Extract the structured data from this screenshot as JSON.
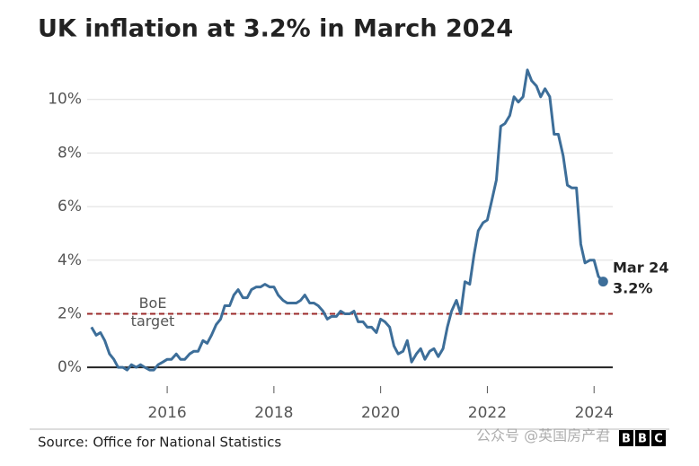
{
  "chart_data": {
    "type": "line",
    "title": "UK inflation at 3.2% in March 2024",
    "source": "Source: Office for National Statistics",
    "watermark": "公众号 @英国房产君",
    "logo": [
      "B",
      "B",
      "C"
    ],
    "color": "#3d6e99",
    "x": [
      2014.58,
      2014.67,
      2014.75,
      2014.83,
      2014.92,
      2015,
      2015.08,
      2015.17,
      2015.25,
      2015.33,
      2015.42,
      2015.5,
      2015.58,
      2015.67,
      2015.75,
      2015.83,
      2015.92,
      2016,
      2016.08,
      2016.17,
      2016.25,
      2016.33,
      2016.42,
      2016.5,
      2016.58,
      2016.67,
      2016.75,
      2016.83,
      2016.92,
      2017,
      2017.08,
      2017.17,
      2017.25,
      2017.33,
      2017.42,
      2017.5,
      2017.58,
      2017.67,
      2017.75,
      2017.83,
      2017.92,
      2018,
      2018.08,
      2018.17,
      2018.25,
      2018.33,
      2018.42,
      2018.5,
      2018.58,
      2018.67,
      2018.75,
      2018.83,
      2018.92,
      2019,
      2019.08,
      2019.17,
      2019.25,
      2019.33,
      2019.42,
      2019.5,
      2019.58,
      2019.67,
      2019.75,
      2019.83,
      2019.92,
      2020,
      2020.08,
      2020.17,
      2020.25,
      2020.33,
      2020.42,
      2020.5,
      2020.58,
      2020.67,
      2020.75,
      2020.83,
      2020.92,
      2021,
      2021.08,
      2021.17,
      2021.25,
      2021.33,
      2021.42,
      2021.5,
      2021.58,
      2021.67,
      2021.75,
      2021.83,
      2021.92,
      2022,
      2022.08,
      2022.17,
      2022.25,
      2022.33,
      2022.42,
      2022.5,
      2022.58,
      2022.67,
      2022.75,
      2022.83,
      2022.92,
      2023,
      2023.08,
      2023.17,
      2023.25,
      2023.33,
      2023.42,
      2023.5,
      2023.58,
      2023.67,
      2023.75,
      2023.83,
      2023.92,
      2024,
      2024.08,
      2024.17
    ],
    "values": [
      1.5,
      1.2,
      1.3,
      1.0,
      0.5,
      0.3,
      0.0,
      0.0,
      -0.1,
      0.1,
      0.0,
      0.1,
      0.0,
      -0.1,
      -0.1,
      0.1,
      0.2,
      0.3,
      0.3,
      0.5,
      0.3,
      0.3,
      0.5,
      0.6,
      0.6,
      1.0,
      0.9,
      1.2,
      1.6,
      1.8,
      2.3,
      2.3,
      2.7,
      2.9,
      2.6,
      2.6,
      2.9,
      3.0,
      3.0,
      3.1,
      3.0,
      3.0,
      2.7,
      2.5,
      2.4,
      2.4,
      2.4,
      2.5,
      2.7,
      2.4,
      2.4,
      2.3,
      2.1,
      1.8,
      1.9,
      1.9,
      2.1,
      2.0,
      2.0,
      2.1,
      1.7,
      1.7,
      1.5,
      1.5,
      1.3,
      1.8,
      1.7,
      1.5,
      0.8,
      0.5,
      0.6,
      1.0,
      0.2,
      0.5,
      0.7,
      0.3,
      0.6,
      0.7,
      0.4,
      0.7,
      1.5,
      2.1,
      2.5,
      2.0,
      3.2,
      3.1,
      4.2,
      5.1,
      5.4,
      5.5,
      6.2,
      7.0,
      9.0,
      9.1,
      9.4,
      10.1,
      9.9,
      10.1,
      11.1,
      10.7,
      10.5,
      10.1,
      10.4,
      10.1,
      8.7,
      8.7,
      7.9,
      6.8,
      6.7,
      6.7,
      4.6,
      3.9,
      4.0,
      4.0,
      3.4,
      3.2
    ],
    "end_label": "Mar 24",
    "end_value_label": "3.2%",
    "target": {
      "value": 2,
      "label": [
        "BoE",
        "target"
      ],
      "color": "#9b2a2a"
    },
    "xlim": [
      2014.5,
      2024.35
    ],
    "ylim": [
      -0.9,
      11.6
    ],
    "xticks": [
      2016,
      2018,
      2020,
      2022,
      2024
    ],
    "yticks": [
      {
        "value": 0,
        "label": "0%"
      },
      {
        "value": 2,
        "label": "2%"
      },
      {
        "value": 4,
        "label": "4%"
      },
      {
        "value": 6,
        "label": "6%"
      },
      {
        "value": 8,
        "label": "8%"
      },
      {
        "value": 10,
        "label": "10%"
      }
    ],
    "grid": true
  }
}
